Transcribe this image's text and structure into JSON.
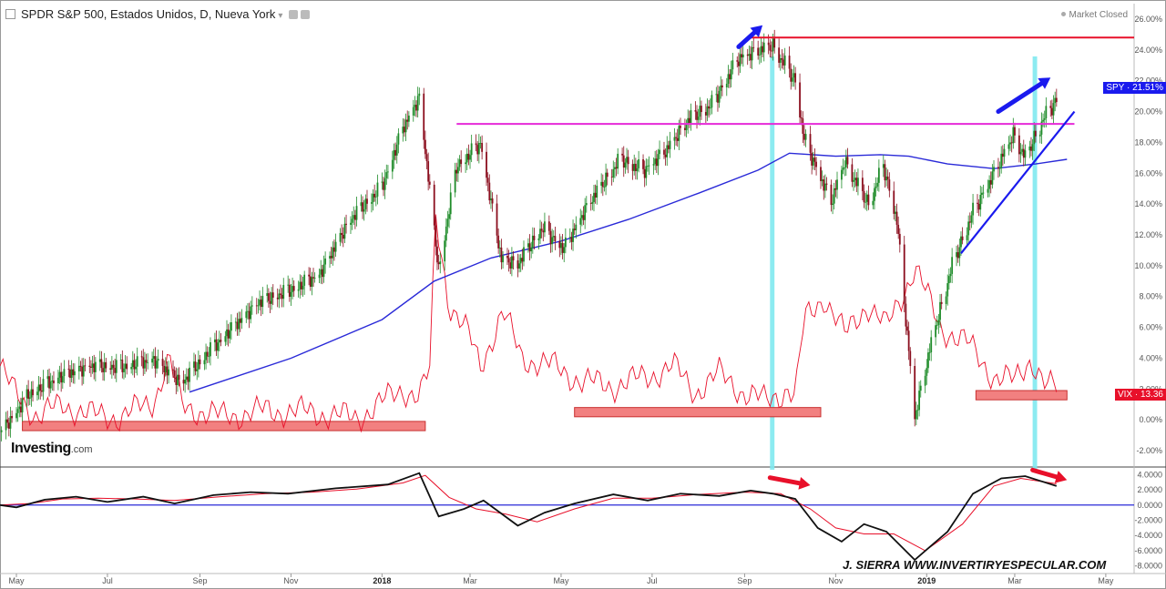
{
  "header": {
    "title": "SPDR S&P 500, Estados Unidos, D, Nueva York",
    "market_status": "Market Closed"
  },
  "branding": {
    "logo": "Investing",
    "logo_suffix": ".com"
  },
  "credit": "J. SIERRA   WWW.INVERTIRYESPECULAR.COM",
  "badges": {
    "spy": {
      "label": "SPY",
      "value": "21.51%",
      "color": "#1a1aee"
    },
    "vix": {
      "label": "VIX",
      "value": "13.36",
      "color": "#e8102a"
    }
  },
  "chart_data": [
    {
      "type": "line",
      "panel": "main",
      "x_ticks": [
        "May",
        "Jul",
        "Sep",
        "Nov",
        "2018",
        "Mar",
        "May",
        "Jul",
        "Sep",
        "Nov",
        "2019",
        "Mar",
        "May"
      ],
      "y_ticks": [
        "26.00%",
        "24.00%",
        "22.00%",
        "20.00%",
        "18.00%",
        "16.00%",
        "14.00%",
        "12.00%",
        "10.00%",
        "8.00%",
        "6.00%",
        "4.00%",
        "2.00%",
        "0.00%",
        "-2.00%"
      ],
      "ylim": [
        -3,
        27
      ],
      "x_range": [
        "2017-04-20",
        "2019-05-20"
      ],
      "series": [
        {
          "name": "SPY",
          "style": "candlestick",
          "up_color": "#1f8c2a",
          "down_color": "#8b0e1e",
          "x": [
            "2017-04-20",
            "2017-05-10",
            "2017-06-01",
            "2017-06-20",
            "2017-07-10",
            "2017-08-01",
            "2017-08-20",
            "2017-09-05",
            "2017-09-20",
            "2017-10-10",
            "2017-11-01",
            "2017-11-20",
            "2017-12-10",
            "2018-01-01",
            "2018-01-15",
            "2018-01-26",
            "2018-02-08",
            "2018-02-20",
            "2018-03-08",
            "2018-03-22",
            "2018-04-02",
            "2018-04-18",
            "2018-05-03",
            "2018-05-20",
            "2018-06-10",
            "2018-06-25",
            "2018-07-10",
            "2018-07-25",
            "2018-08-10",
            "2018-08-28",
            "2018-09-10",
            "2018-09-20",
            "2018-10-05",
            "2018-10-11",
            "2018-10-29",
            "2018-11-07",
            "2018-11-23",
            "2018-12-03",
            "2018-12-12",
            "2018-12-24",
            "2019-01-04",
            "2019-01-18",
            "2019-02-01",
            "2019-02-15",
            "2019-02-28",
            "2019-03-08",
            "2019-03-20",
            "2019-03-29"
          ],
          "values": [
            -0.8,
            1.8,
            3.0,
            3.6,
            3.5,
            4.0,
            2.5,
            4.3,
            5.8,
            7.7,
            8.5,
            9.5,
            13.0,
            15.2,
            19.0,
            21.0,
            9.8,
            16.5,
            18.0,
            10.5,
            10.2,
            12.5,
            11.2,
            14.2,
            17.0,
            16.2,
            17.5,
            19.5,
            20.5,
            23.5,
            24.0,
            24.3,
            22.0,
            18.2,
            14.2,
            16.8,
            14.0,
            16.5,
            13.0,
            0.2,
            5.0,
            10.0,
            13.5,
            16.0,
            18.5,
            17.0,
            19.5,
            20.7
          ]
        },
        {
          "name": "MA",
          "style": "line",
          "color": "#2a2ad8",
          "x": [
            "2017-08-25",
            "2017-11-01",
            "2018-01-01",
            "2018-02-05",
            "2018-03-15",
            "2018-05-01",
            "2018-06-15",
            "2018-08-01",
            "2018-09-10",
            "2018-10-01",
            "2018-11-01",
            "2018-12-01",
            "2018-12-20",
            "2019-01-15",
            "2019-02-15",
            "2019-03-15",
            "2019-04-05"
          ],
          "values": [
            1.8,
            4.0,
            6.5,
            9.0,
            10.5,
            11.6,
            13.0,
            14.7,
            16.2,
            17.3,
            17.1,
            17.2,
            17.1,
            16.6,
            16.3,
            16.6,
            16.9
          ]
        },
        {
          "name": "VIX",
          "style": "line",
          "color": "#e8102a",
          "x": [
            "2017-04-20",
            "2017-04-28",
            "2017-05-15",
            "2017-06-01",
            "2017-06-20",
            "2017-07-10",
            "2017-08-01",
            "2017-08-11",
            "2017-08-20",
            "2017-09-15",
            "2017-10-15",
            "2017-11-15",
            "2017-12-15",
            "2018-01-15",
            "2018-01-26",
            "2018-02-02",
            "2018-02-06",
            "2018-02-15",
            "2018-02-28",
            "2018-03-08",
            "2018-03-23",
            "2018-04-05",
            "2018-04-25",
            "2018-05-15",
            "2018-06-05",
            "2018-06-28",
            "2018-07-15",
            "2018-07-30",
            "2018-08-15",
            "2018-08-31",
            "2018-09-15",
            "2018-09-30",
            "2018-10-05",
            "2018-10-11",
            "2018-10-24",
            "2018-11-07",
            "2018-11-22",
            "2018-12-05",
            "2018-12-21",
            "2018-12-24",
            "2019-01-10",
            "2019-01-28",
            "2019-02-15",
            "2019-03-01",
            "2019-03-12",
            "2019-03-22",
            "2019-03-29"
          ],
          "values": [
            3.5,
            2.0,
            0.2,
            1.0,
            0.3,
            0.2,
            1.2,
            4.0,
            0.9,
            0.2,
            0.6,
            0.5,
            0.1,
            2.0,
            1.5,
            3.2,
            13.2,
            7.5,
            5.5,
            3.5,
            7.0,
            4.0,
            3.5,
            2.5,
            2.2,
            2.8,
            3.5,
            1.8,
            3.0,
            1.8,
            1.2,
            2.0,
            1.5,
            6.5,
            8.0,
            5.5,
            7.5,
            6.0,
            9.2,
            10.0,
            6.0,
            5.0,
            2.8,
            2.5,
            4.0,
            2.2,
            2.0
          ]
        }
      ],
      "annotations": {
        "resistance_line": {
          "value": 24.8,
          "color": "#e8102a",
          "x_start": "2018-09-05"
        },
        "pivot_line": {
          "value": 19.2,
          "color": "#e62ad8",
          "x_start": "2018-02-20",
          "x_end": "2019-04-10"
        },
        "trendline": {
          "x": [
            "2019-01-24",
            "2019-04-10"
          ],
          "values": [
            10.8,
            20.0
          ],
          "color": "#1a1aee"
        },
        "vix_zones": [
          {
            "x": [
              "2017-05-05",
              "2018-01-30"
            ],
            "range": [
              -0.7,
              -0.1
            ]
          },
          {
            "x": [
              "2018-05-10",
              "2018-10-22"
            ],
            "range": [
              0.2,
              0.8
            ]
          },
          {
            "x": [
              "2019-02-03",
              "2019-04-05"
            ],
            "range": [
              1.3,
              1.9
            ]
          }
        ],
        "highlight_bands": [
          {
            "x": [
              "2018-09-18",
              "2018-09-21"
            ],
            "color": "#7fe9f0"
          },
          {
            "x": [
              "2019-03-13",
              "2019-03-16"
            ],
            "color": "#7fe9f0"
          }
        ],
        "up_arrows": [
          {
            "x": [
              "2018-08-28",
              "2018-09-13"
            ],
            "values": [
              24.2,
              25.6
            ],
            "color": "#1a1aee"
          },
          {
            "x": [
              "2019-02-18",
              "2019-03-25"
            ],
            "values": [
              20.0,
              22.2
            ],
            "color": "#1a1aee"
          }
        ]
      }
    },
    {
      "type": "line",
      "panel": "oscillator",
      "y_ticks": [
        "4.0000",
        "2.0000",
        "0.0000",
        "-2.0000",
        "-4.0000",
        "-6.0000",
        "-8.0000"
      ],
      "ylim": [
        -9,
        5
      ],
      "zero_line_color": "#2a2ad8",
      "series": [
        {
          "name": "line",
          "color": "#111111",
          "x": [
            "2017-04-20",
            "2017-05-01",
            "2017-05-20",
            "2017-06-10",
            "2017-07-01",
            "2017-07-25",
            "2017-08-15",
            "2017-09-10",
            "2017-10-05",
            "2017-10-30",
            "2017-12-01",
            "2018-01-05",
            "2018-01-26",
            "2018-02-08",
            "2018-02-25",
            "2018-03-10",
            "2018-04-02",
            "2018-04-20",
            "2018-05-10",
            "2018-06-05",
            "2018-06-28",
            "2018-07-20",
            "2018-08-15",
            "2018-09-05",
            "2018-09-20",
            "2018-10-05",
            "2018-10-20",
            "2018-11-05",
            "2018-11-20",
            "2018-12-05",
            "2018-12-24",
            "2019-01-15",
            "2019-02-01",
            "2019-02-20",
            "2019-03-08",
            "2019-03-29"
          ],
          "values": [
            0.0,
            -0.3,
            0.7,
            1.1,
            0.4,
            1.1,
            0.2,
            1.3,
            1.7,
            1.5,
            2.2,
            2.7,
            4.2,
            -1.5,
            -0.5,
            0.6,
            -2.7,
            -1.0,
            0.2,
            1.4,
            0.6,
            1.5,
            1.2,
            1.9,
            1.5,
            0.8,
            -3.0,
            -4.8,
            -2.5,
            -3.5,
            -7.2,
            -3.5,
            1.5,
            3.5,
            3.8,
            2.5
          ]
        },
        {
          "name": "signal",
          "color": "#e8102a",
          "x": [
            "2017-04-20",
            "2017-05-10",
            "2017-06-01",
            "2017-06-25",
            "2017-07-20",
            "2017-08-15",
            "2017-09-15",
            "2017-10-15",
            "2017-11-15",
            "2017-12-15",
            "2018-01-15",
            "2018-01-30",
            "2018-02-15",
            "2018-03-05",
            "2018-03-25",
            "2018-04-15",
            "2018-05-10",
            "2018-06-05",
            "2018-07-01",
            "2018-08-01",
            "2018-09-01",
            "2018-09-25",
            "2018-10-15",
            "2018-11-01",
            "2018-11-20",
            "2018-12-10",
            "2018-12-31",
            "2019-01-25",
            "2019-02-15",
            "2019-03-05",
            "2019-03-29"
          ],
          "values": [
            0.0,
            0.2,
            0.8,
            0.9,
            0.8,
            0.6,
            1.1,
            1.5,
            1.7,
            2.1,
            2.9,
            3.9,
            1.0,
            -0.5,
            -1.2,
            -2.2,
            -0.5,
            0.9,
            0.9,
            1.4,
            1.7,
            1.5,
            -0.5,
            -3.0,
            -3.8,
            -3.8,
            -6.0,
            -2.5,
            2.5,
            3.5,
            2.8
          ]
        }
      ],
      "annotations": {
        "down_arrows": [
          {
            "x": [
              "2018-09-18",
              "2018-10-15"
            ],
            "values": [
              3.6,
              2.6
            ],
            "color": "#e8102a"
          },
          {
            "x": [
              "2019-03-13",
              "2019-04-05"
            ],
            "values": [
              4.6,
              3.3
            ],
            "color": "#e8102a"
          }
        ]
      }
    }
  ]
}
